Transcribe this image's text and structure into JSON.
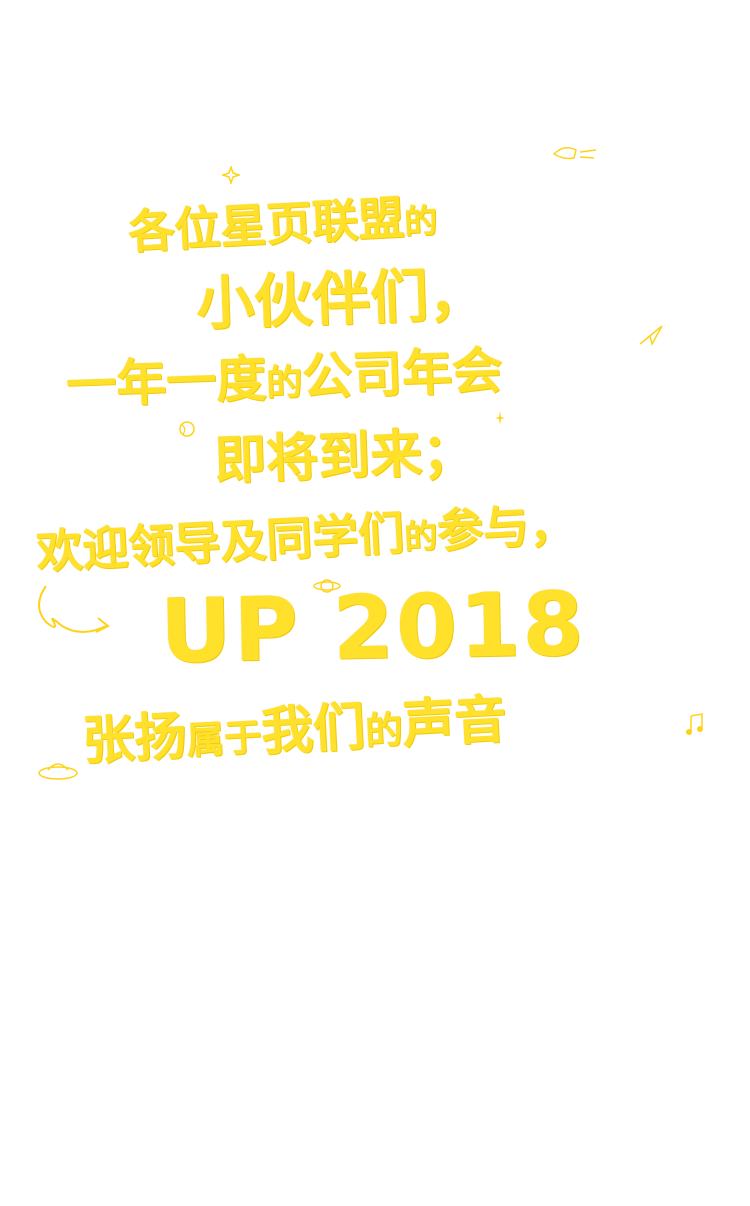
{
  "theme": {
    "text_color": "#FFE02A",
    "background": "#FFFFFF"
  },
  "invitation": {
    "line1_main": "各位星页联盟",
    "line1_small": "的",
    "line2": "小伙伴们，",
    "line3_a": "一年一度",
    "line3_small": "的",
    "line3_b": "公司年会",
    "line4": "即将到来；",
    "line5_a": "欢迎领导及同学们",
    "line5_small": "的",
    "line5_b": "参与，",
    "line6": "UP 2018",
    "line7_a": "张扬",
    "line7_small": "属于",
    "line7_b": "我们",
    "line7_small2": "的",
    "line7_c": "声音"
  },
  "doodles": [
    "star-icon",
    "rocket-icon",
    "paper-plane-icon",
    "planet-icon",
    "ball-icon",
    "sparkle-icon",
    "swirl-arrow-icon",
    "ufo-icon",
    "music-note-icon"
  ]
}
